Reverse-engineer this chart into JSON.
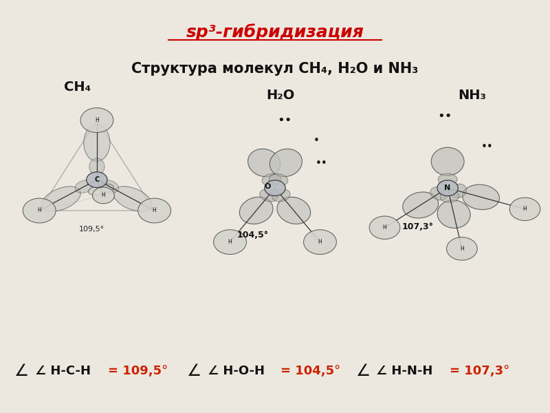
{
  "bg_color": "#ece8e0",
  "title_color": "#cc0000",
  "title": "sp³-гибридизация",
  "subtitle": "Структура молекул СН₄, Н₂О и NH₃",
  "ch4_label": "CH₄",
  "h2o_label": "H₂O",
  "nh3_label": "NH₃",
  "angle_hch": "∠ H-C-H",
  "angle_hoh": "∠ H-O-H",
  "angle_hnh": "∠ H-N-H",
  "val_hch": "= 109,5°",
  "val_hoh": "= 104,5°",
  "val_hnh": "= 107,3°",
  "ann_hch": "109,5°",
  "ann_hoh": "104,5°",
  "ann_hnh": "107,3°",
  "lobe_fc": "#c8c8c4",
  "lobe_ec": "#444444",
  "h_fc": "#d4d4cc",
  "center_fc": "#b8bec4"
}
